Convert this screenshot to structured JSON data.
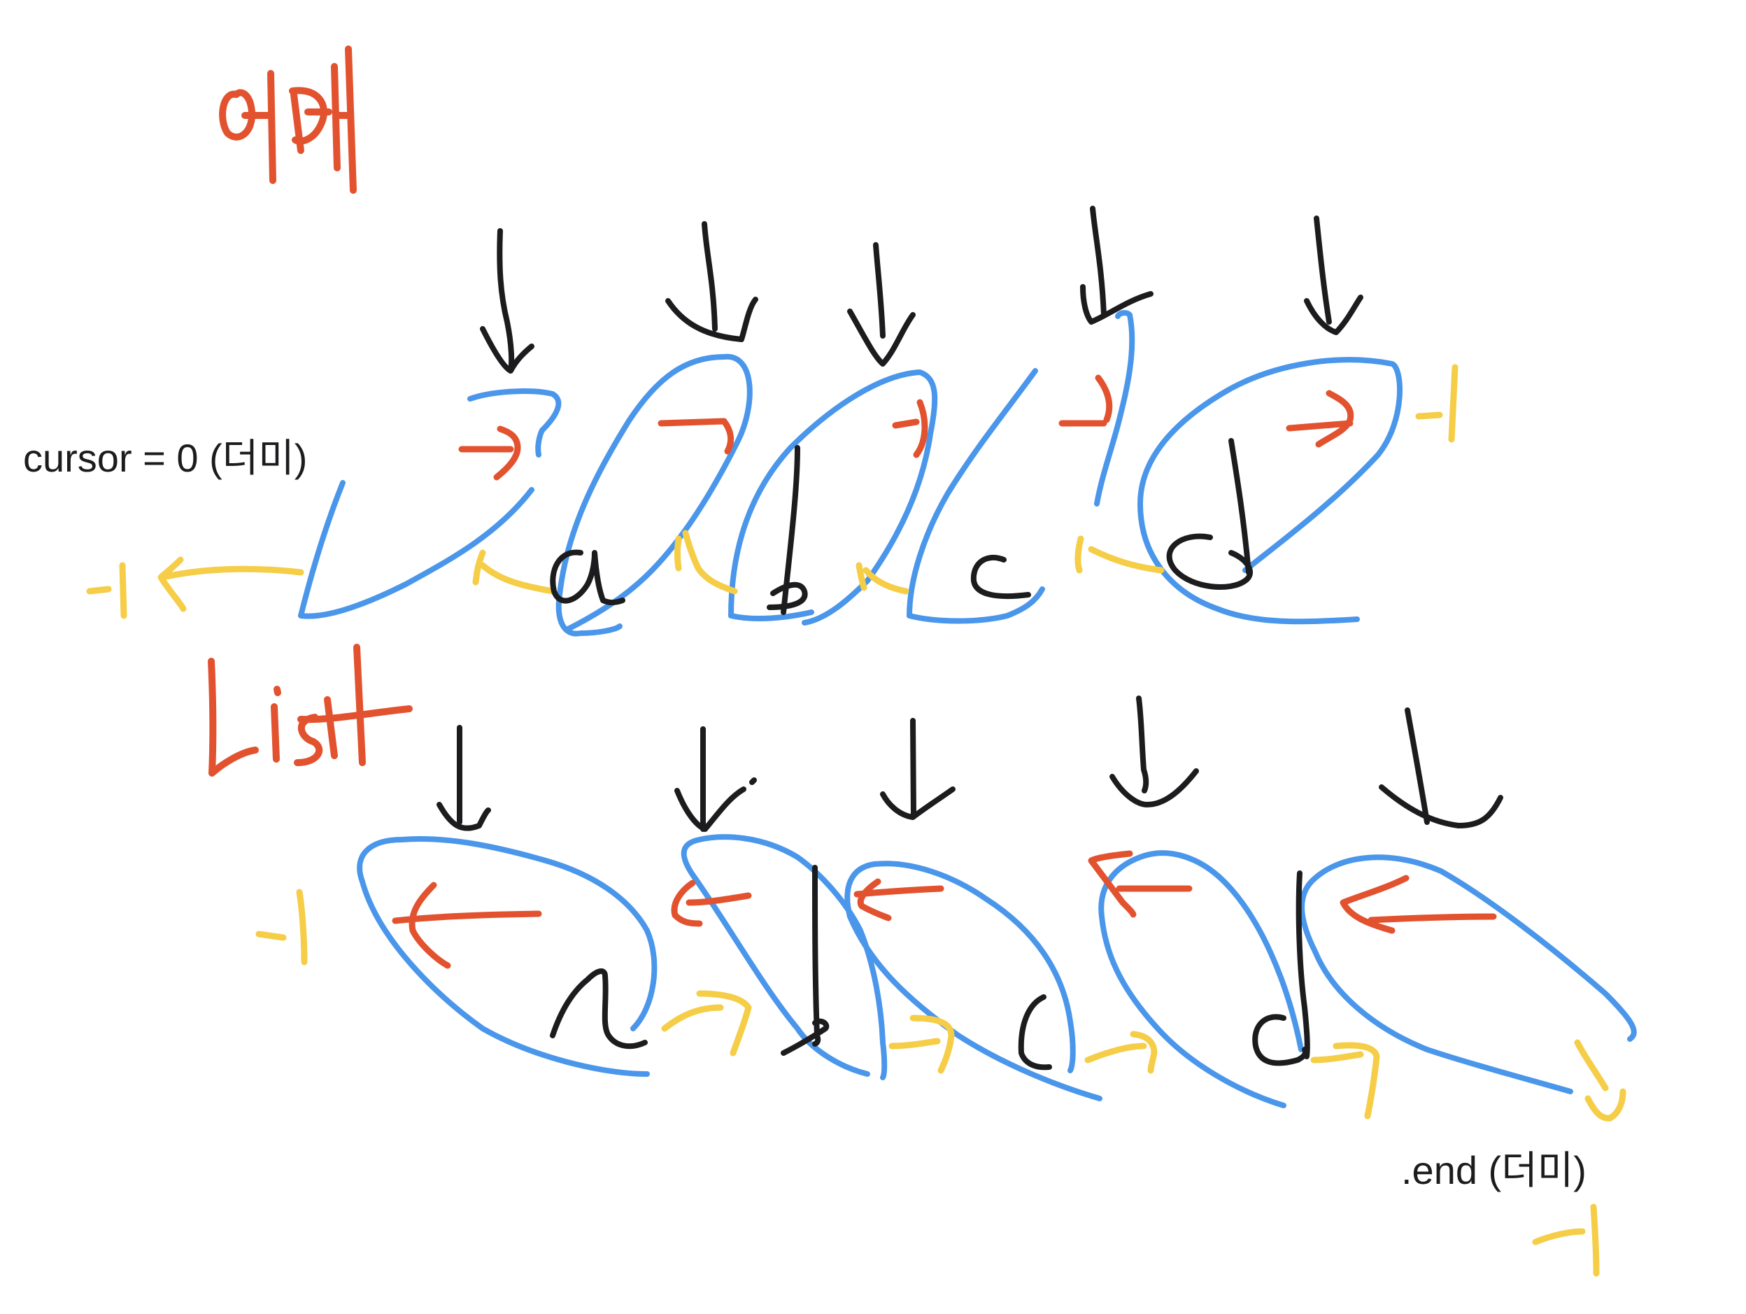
{
  "annotations": {
    "cursor_label": "cursor = 0 (더미)",
    "end_label": ".end (더미)"
  },
  "diagram": {
    "sections": [
      {
        "title": "어레이",
        "nodes": [
          "a",
          "b",
          "c",
          "d"
        ]
      },
      {
        "title": "List",
        "nodes": [
          "a",
          "b",
          "c",
          "d"
        ]
      }
    ],
    "markers": {
      "minus_one": "-1"
    }
  },
  "colors": {
    "blue": "#4a96ea",
    "red": "#e2522f",
    "yellow": "#f5cd47",
    "black": "#1c1c1e",
    "background": "#ffffff"
  }
}
